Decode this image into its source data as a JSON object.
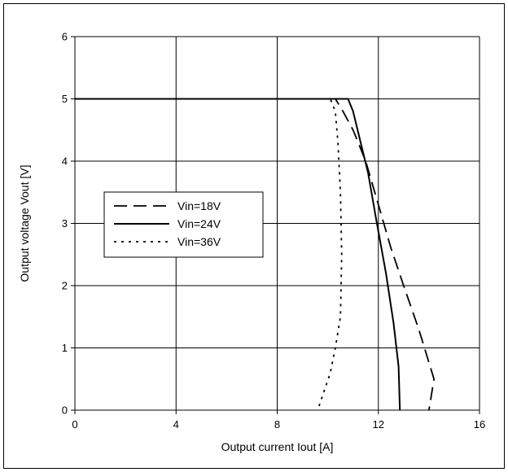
{
  "chart_data": {
    "type": "line",
    "title": "",
    "xlabel": "Output current Iout  [A]",
    "ylabel": "Output voltage Vout  [V]",
    "xlim": [
      0,
      16
    ],
    "ylim": [
      0,
      6
    ],
    "xticks": [
      "0",
      "4",
      "8",
      "12",
      "16"
    ],
    "yticks": [
      "0",
      "1",
      "2",
      "3",
      "4",
      "5",
      "6"
    ],
    "grid": true,
    "legend_position": "middle-left",
    "series": [
      {
        "name": "Vin=18V",
        "style": "dashed",
        "color": "#000000",
        "points": [
          [
            0,
            5.0
          ],
          [
            10.3,
            5.0
          ],
          [
            10.6,
            4.8
          ],
          [
            11.0,
            4.5
          ],
          [
            11.5,
            4.0
          ],
          [
            12.0,
            3.3
          ],
          [
            12.5,
            2.6
          ],
          [
            13.0,
            2.0
          ],
          [
            13.6,
            1.3
          ],
          [
            14.2,
            0.5
          ],
          [
            14.0,
            0.0
          ]
        ]
      },
      {
        "name": "Vin=24V",
        "style": "solid",
        "color": "#000000",
        "points": [
          [
            0,
            5.0
          ],
          [
            10.8,
            5.0
          ],
          [
            11.0,
            4.8
          ],
          [
            11.3,
            4.3
          ],
          [
            11.6,
            3.8
          ],
          [
            11.9,
            3.1
          ],
          [
            12.3,
            2.2
          ],
          [
            12.6,
            1.4
          ],
          [
            12.8,
            0.7
          ],
          [
            12.85,
            0.0
          ]
        ]
      },
      {
        "name": "Vin=36V",
        "style": "dotted",
        "color": "#000000",
        "points": [
          [
            0,
            5.0
          ],
          [
            10.1,
            5.0
          ],
          [
            10.3,
            4.8
          ],
          [
            10.4,
            4.3
          ],
          [
            10.5,
            3.5
          ],
          [
            10.55,
            2.5
          ],
          [
            10.5,
            1.5
          ],
          [
            10.3,
            1.0
          ],
          [
            10.1,
            0.6
          ],
          [
            9.85,
            0.3
          ],
          [
            9.6,
            0.0
          ]
        ]
      }
    ]
  }
}
